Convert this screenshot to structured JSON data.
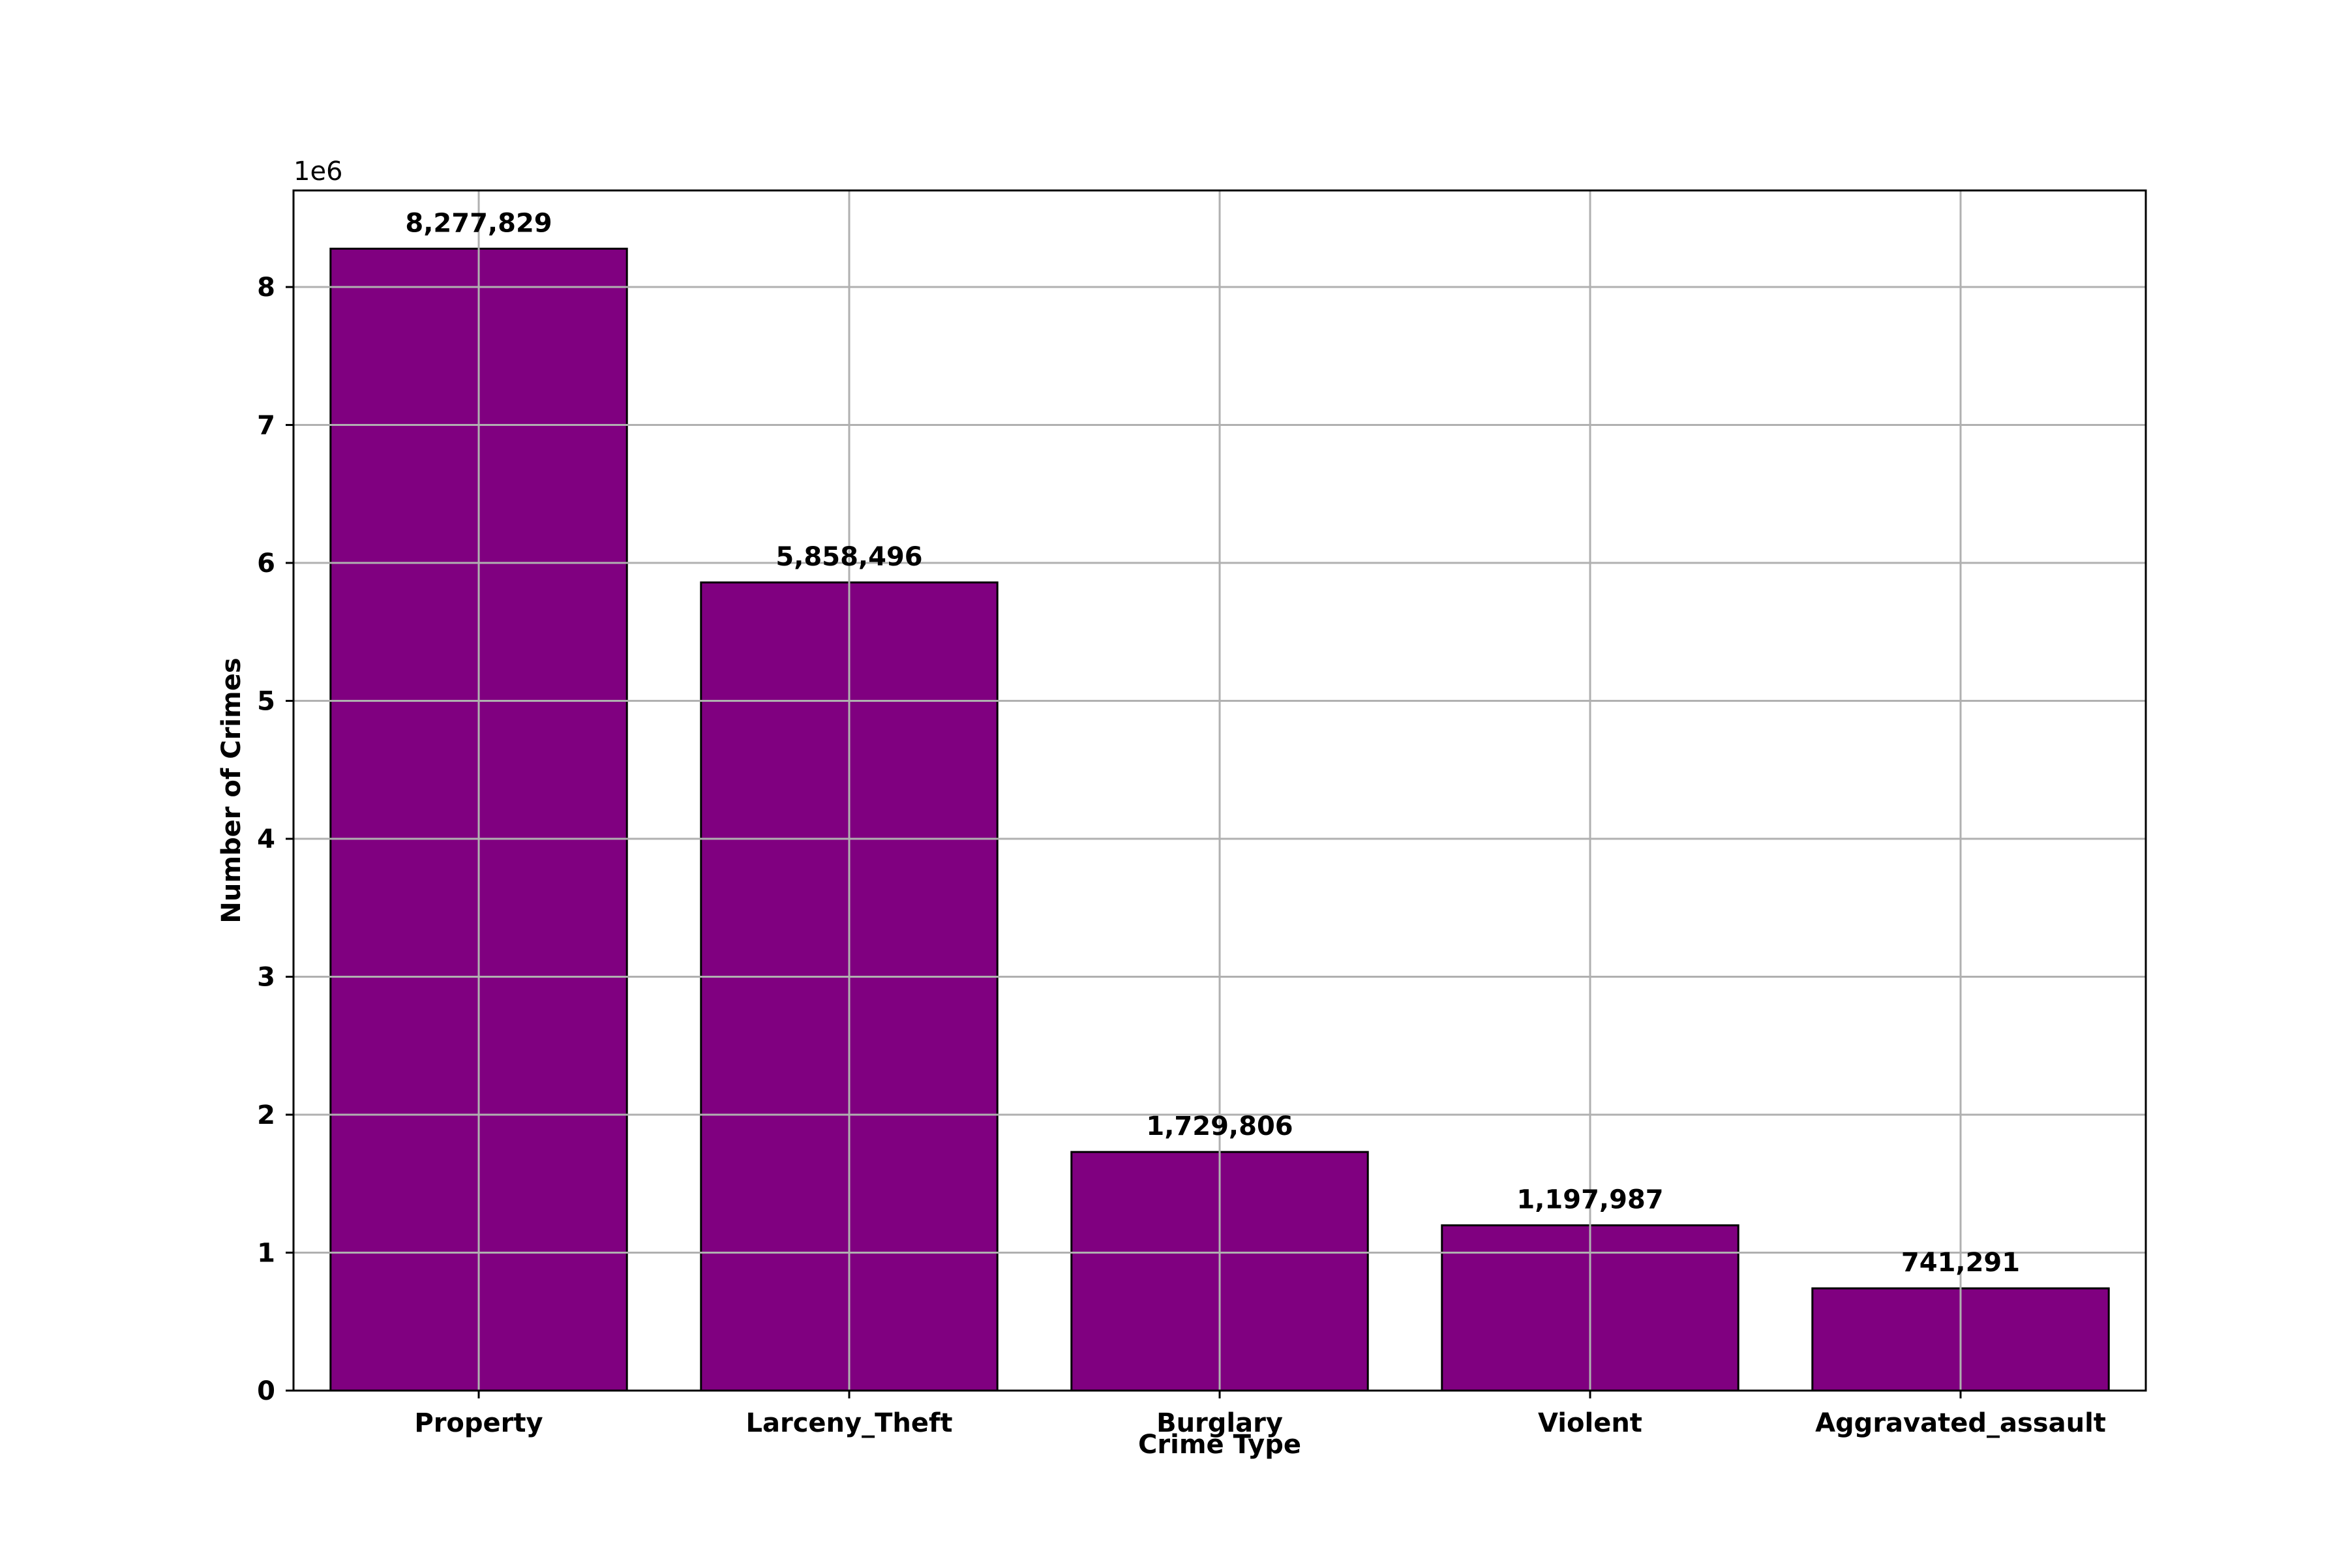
{
  "chart_data": {
    "type": "bar",
    "categories": [
      "Property",
      "Larceny_Theft",
      "Burglary",
      "Violent",
      "Aggravated_assault"
    ],
    "values": [
      8277829,
      5858496,
      1729806,
      1197987,
      741291
    ],
    "value_labels": [
      "8,277,829",
      "5,858,496",
      "1,729,806",
      "1,197,987",
      "741,291"
    ],
    "xlabel": "Crime Type",
    "ylabel": "Number of Crimes",
    "y_offset_label": "1e6",
    "ylim": [
      0,
      8700000
    ],
    "y_ticks": [
      0,
      1000000,
      2000000,
      3000000,
      4000000,
      5000000,
      6000000,
      7000000,
      8000000
    ],
    "y_tick_labels": [
      "0",
      "1",
      "2",
      "3",
      "4",
      "5",
      "6",
      "7",
      "8"
    ],
    "grid": true,
    "colors": {
      "bar": "#800080",
      "edge": "#000000",
      "grid": "#b0b0b0"
    }
  }
}
